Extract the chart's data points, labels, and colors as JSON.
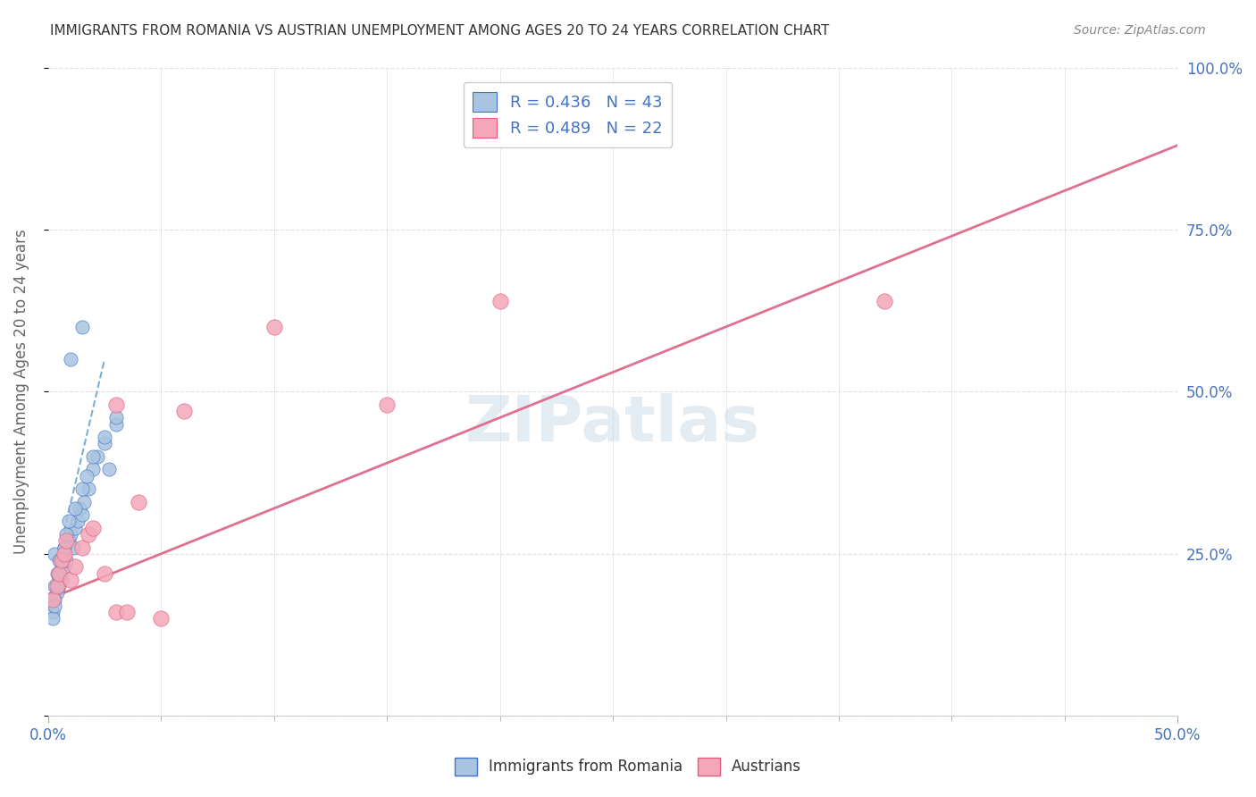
{
  "title": "IMMIGRANTS FROM ROMANIA VS AUSTRIAN UNEMPLOYMENT AMONG AGES 20 TO 24 YEARS CORRELATION CHART",
  "source": "Source: ZipAtlas.com",
  "xlabel": "",
  "ylabel": "Unemployment Among Ages 20 to 24 years",
  "xlim": [
    0.0,
    0.5
  ],
  "ylim": [
    0.0,
    1.0
  ],
  "yticks": [
    0.0,
    0.25,
    0.5,
    0.75,
    1.0
  ],
  "yticklabels": [
    "",
    "25.0%",
    "50.0%",
    "75.0%",
    "100.0%"
  ],
  "blue_color": "#a8c4e0",
  "blue_dark": "#4472c4",
  "pink_color": "#f4a7b9",
  "pink_dark": "#e05c7a",
  "trendline_blue_color": "#7bafd4",
  "trendline_pink_color": "#e07090",
  "watermark_color": "#c8d8e8",
  "title_color": "#333333",
  "axis_label_color": "#666666",
  "grid_color": "#e0e0e0",
  "blue_scatter_x": [
    0.001,
    0.002,
    0.003,
    0.003,
    0.004,
    0.004,
    0.005,
    0.005,
    0.006,
    0.007,
    0.007,
    0.008,
    0.009,
    0.01,
    0.011,
    0.012,
    0.013,
    0.014,
    0.015,
    0.016,
    0.018,
    0.02,
    0.022,
    0.025,
    0.027,
    0.03,
    0.003,
    0.004,
    0.005,
    0.006,
    0.007,
    0.008,
    0.009,
    0.012,
    0.015,
    0.017,
    0.02,
    0.025,
    0.03,
    0.002,
    0.003,
    0.01,
    0.015
  ],
  "blue_scatter_y": [
    0.18,
    0.16,
    0.2,
    0.25,
    0.19,
    0.22,
    0.2,
    0.24,
    0.21,
    0.23,
    0.26,
    0.24,
    0.27,
    0.28,
    0.26,
    0.29,
    0.3,
    0.32,
    0.31,
    0.33,
    0.35,
    0.38,
    0.4,
    0.42,
    0.38,
    0.45,
    0.18,
    0.2,
    0.22,
    0.24,
    0.26,
    0.28,
    0.3,
    0.32,
    0.35,
    0.37,
    0.4,
    0.43,
    0.46,
    0.15,
    0.17,
    0.55,
    0.6
  ],
  "pink_scatter_x": [
    0.002,
    0.004,
    0.005,
    0.006,
    0.007,
    0.008,
    0.01,
    0.012,
    0.015,
    0.018,
    0.02,
    0.025,
    0.03,
    0.035,
    0.04,
    0.05,
    0.06,
    0.1,
    0.15,
    0.2,
    0.37,
    0.03
  ],
  "pink_scatter_y": [
    0.18,
    0.2,
    0.22,
    0.24,
    0.25,
    0.27,
    0.21,
    0.23,
    0.26,
    0.28,
    0.29,
    0.22,
    0.16,
    0.16,
    0.33,
    0.15,
    0.47,
    0.6,
    0.48,
    0.64,
    0.64,
    0.48
  ],
  "blue_trendline_x": [
    0.0,
    0.025
  ],
  "blue_trendline_y": [
    0.18,
    0.55
  ],
  "pink_trendline_x": [
    0.0,
    0.5
  ],
  "pink_trendline_y": [
    0.18,
    0.88
  ],
  "dot_size": 120,
  "legend_label1": "Immigrants from Romania",
  "legend_label2": "Austrians",
  "legend_r1": "R = 0.436",
  "legend_n1": "N = 43",
  "legend_r2": "R = 0.489",
  "legend_n2": "N = 22"
}
